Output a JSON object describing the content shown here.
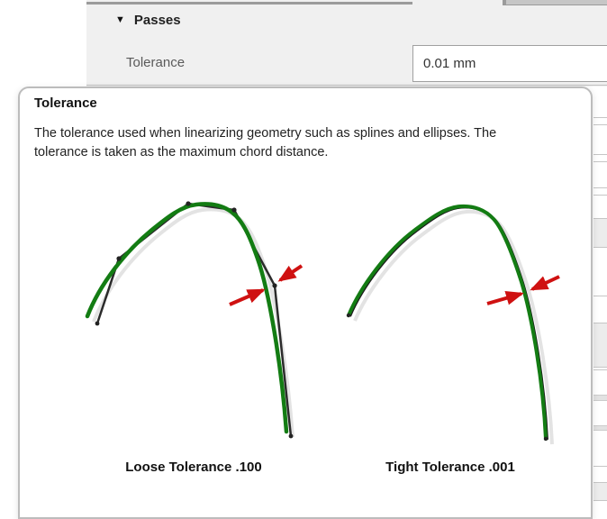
{
  "panel": {
    "section": {
      "icon": "▼",
      "label": "Passes"
    },
    "tolerance_field": {
      "label": "Tolerance",
      "value": "0.01 mm"
    }
  },
  "tooltip": {
    "title": "Tolerance",
    "description_lines": [
      "The tolerance used when linearizing geometry such as splines and ellipses. The",
      "tolerance is taken as the maximum chord distance."
    ],
    "diagrams": [
      {
        "caption": "Loose Tolerance .100"
      },
      {
        "caption": "Tight Tolerance .001"
      }
    ]
  },
  "colors": {
    "curve_green": "#137c13",
    "chord_black": "#2b2b2b",
    "arrow_red": "#cf1111",
    "panel_bg": "#f0f0f0"
  }
}
